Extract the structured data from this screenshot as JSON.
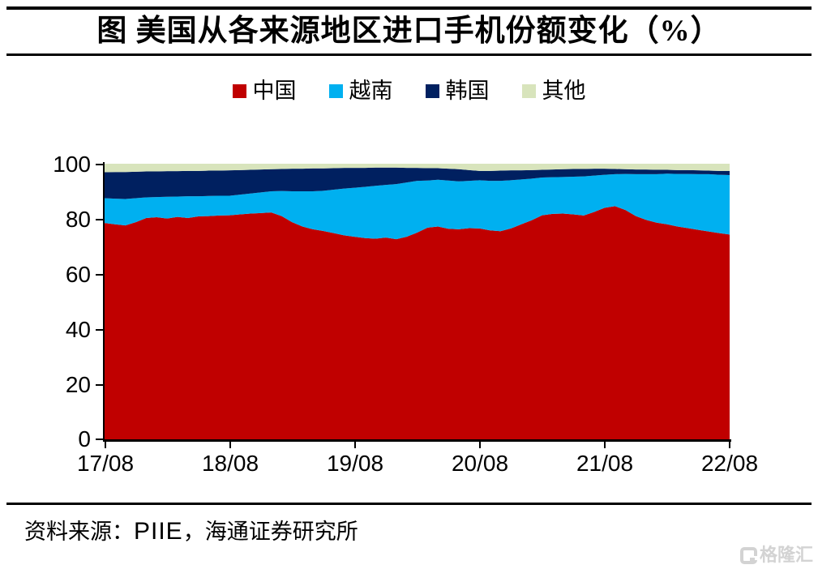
{
  "title": "图 美国从各来源地区进口手机份额变化（%）",
  "legend": {
    "items": [
      {
        "label": "中国",
        "color": "#c00000"
      },
      {
        "label": "越南",
        "color": "#00b0f0"
      },
      {
        "label": "韩国",
        "color": "#002060"
      },
      {
        "label": "其他",
        "color": "#d8e4bc"
      }
    ]
  },
  "chart_data": {
    "type": "area",
    "stacked": true,
    "title": "图 美国从各来源地区进口手机份额变化（%）",
    "ylim": [
      0,
      100
    ],
    "y_ticks": [
      0,
      20,
      40,
      60,
      80,
      100
    ],
    "y_tick_labels_top_to_bottom": [
      "100",
      "80",
      "60",
      "40",
      "20",
      "0"
    ],
    "x_tick_labels": [
      "17/08",
      "18/08",
      "19/08",
      "20/08",
      "21/08",
      "22/08"
    ],
    "x_unit": "month (YY/MM), monthly points from 17/08 to 22/08",
    "grid": false,
    "legend_position": "top-center",
    "series": [
      {
        "key": "china",
        "name": "中国",
        "color": "#c00000",
        "values": [
          78.5,
          78.0,
          77.6,
          78.8,
          80.3,
          80.6,
          80.1,
          80.7,
          80.3,
          80.9,
          81.0,
          81.2,
          81.3,
          81.6,
          81.9,
          82.1,
          82.3,
          81.0,
          78.8,
          77.2,
          76.2,
          75.6,
          74.8,
          74.0,
          73.5,
          73.0,
          72.8,
          73.2,
          72.6,
          73.5,
          75.0,
          76.8,
          77.2,
          76.4,
          76.2,
          76.6,
          76.5,
          75.8,
          75.5,
          76.5,
          78.0,
          79.5,
          81.3,
          81.8,
          81.9,
          81.6,
          81.2,
          82.5,
          84.0,
          84.6,
          83.2,
          81.0,
          79.6,
          78.6,
          78.0,
          77.2,
          76.6,
          76.0,
          75.4,
          74.8,
          74.3
        ]
      },
      {
        "key": "vietnam",
        "name": "越南",
        "color": "#00b0f0",
        "values": [
          9.0,
          9.3,
          9.6,
          8.7,
          7.5,
          7.3,
          7.9,
          7.4,
          7.9,
          7.3,
          7.3,
          7.2,
          7.1,
          7.2,
          7.3,
          7.5,
          7.7,
          9.1,
          11.2,
          12.8,
          13.8,
          14.6,
          15.8,
          17.0,
          17.8,
          18.6,
          19.2,
          19.1,
          20.0,
          19.7,
          18.8,
          17.1,
          17.0,
          17.5,
          17.4,
          17.2,
          17.5,
          18.0,
          18.3,
          17.5,
          16.3,
          15.1,
          13.7,
          13.3,
          13.3,
          13.7,
          14.2,
          13.2,
          12.0,
          11.6,
          13.1,
          15.2,
          16.6,
          17.6,
          18.4,
          19.1,
          19.7,
          20.2,
          20.8,
          21.2,
          21.6
        ]
      },
      {
        "key": "korea",
        "name": "韩国",
        "color": "#002060",
        "values": [
          9.4,
          9.7,
          9.8,
          9.6,
          9.4,
          9.3,
          9.3,
          9.2,
          9.2,
          9.2,
          9.2,
          9.1,
          9.2,
          8.9,
          8.6,
          8.3,
          8.0,
          8.0,
          8.2,
          8.2,
          8.3,
          8.1,
          7.8,
          7.5,
          7.2,
          6.9,
          6.6,
          6.3,
          6.0,
          5.3,
          4.7,
          4.5,
          4.2,
          4.3,
          4.4,
          3.9,
          3.4,
          3.6,
          3.7,
          3.6,
          3.3,
          3.1,
          2.8,
          2.8,
          2.8,
          2.8,
          2.7,
          2.5,
          2.2,
          1.9,
          1.7,
          1.7,
          1.7,
          1.6,
          1.4,
          1.4,
          1.4,
          1.4,
          1.3,
          1.4,
          1.5
        ]
      },
      {
        "key": "others",
        "name": "其他",
        "color": "#d8e4bc",
        "values": [
          3.1,
          3.0,
          3.0,
          2.9,
          2.8,
          2.8,
          2.7,
          2.7,
          2.6,
          2.6,
          2.5,
          2.5,
          2.4,
          2.3,
          2.2,
          2.1,
          2.0,
          1.9,
          1.8,
          1.8,
          1.7,
          1.7,
          1.6,
          1.5,
          1.5,
          1.5,
          1.4,
          1.4,
          1.4,
          1.5,
          1.5,
          1.6,
          1.6,
          1.8,
          2.0,
          2.3,
          2.6,
          2.6,
          2.5,
          2.4,
          2.4,
          2.3,
          2.2,
          2.1,
          2.0,
          1.9,
          1.9,
          1.8,
          1.8,
          1.9,
          2.0,
          2.1,
          2.1,
          2.2,
          2.2,
          2.3,
          2.3,
          2.4,
          2.5,
          2.6,
          2.6
        ]
      }
    ]
  },
  "source": {
    "prefix": "资料来源：",
    "org": "PIIE",
    "suffix": "，海通证券研究所"
  },
  "watermark": {
    "text": "格隆汇"
  }
}
